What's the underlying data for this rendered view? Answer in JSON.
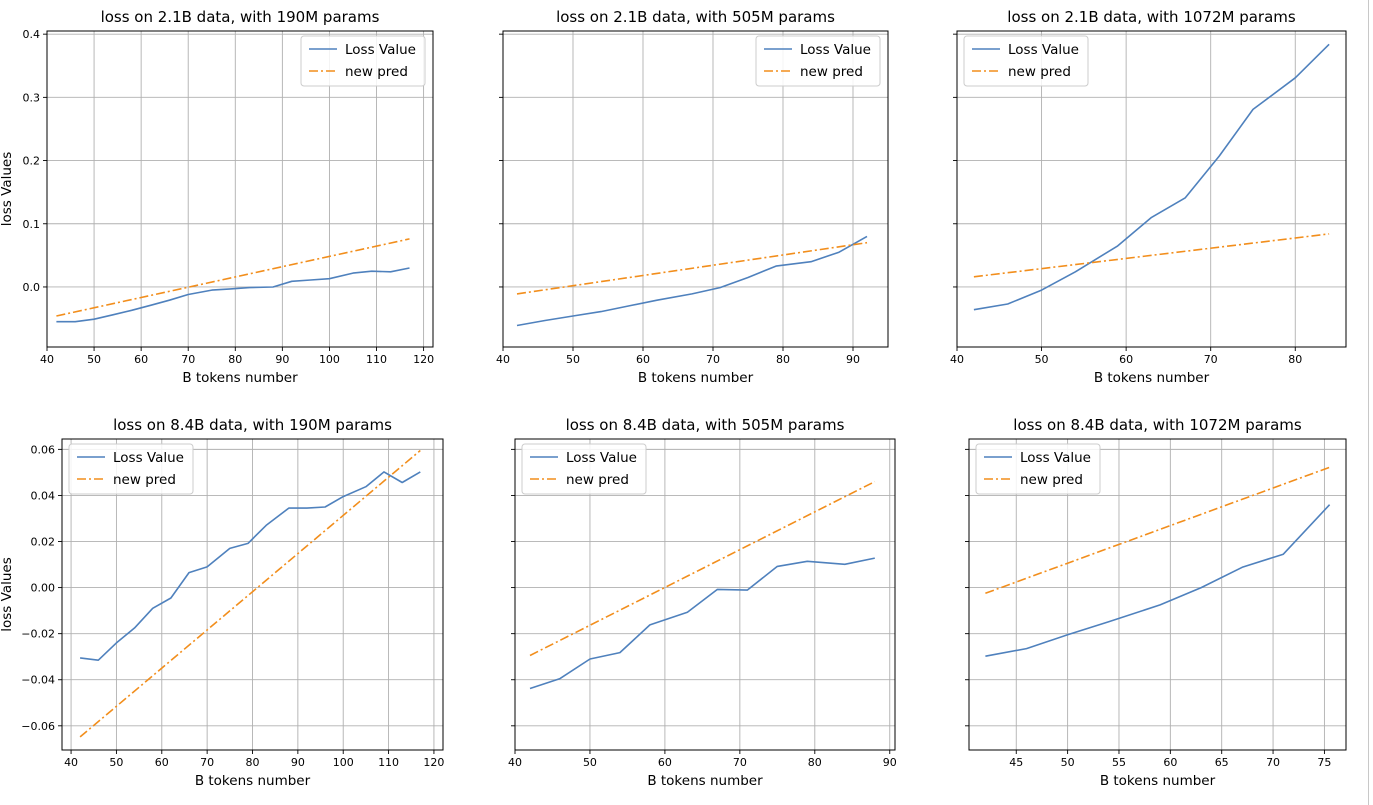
{
  "colors": {
    "loss_line": "#4f81bd",
    "pred_line": "#f28e1c",
    "grid": "#b0b0b0",
    "axis": "#000000",
    "legend_border": "#cccccc"
  },
  "chart_data": [
    {
      "type": "line",
      "title": "loss on 2.1B data, with 190M params",
      "xlabel": "B tokens number",
      "ylabel": "loss Values",
      "xlim": [
        40,
        122
      ],
      "ylim": [
        -0.095,
        0.405
      ],
      "xticks": [
        40,
        50,
        60,
        70,
        80,
        90,
        100,
        110,
        120
      ],
      "xtick_labels": [
        "40",
        "50",
        "60",
        "70",
        "80",
        "90",
        "100",
        "110",
        "120"
      ],
      "yticks": [
        0.0,
        0.1,
        0.2,
        0.3,
        0.4
      ],
      "ytick_labels": [
        "0.0",
        "0.1",
        "0.2",
        "0.3",
        "0.4"
      ],
      "legend_position": "top-right",
      "series": [
        {
          "name": "Loss Value",
          "style": "solid",
          "x": [
            42,
            46,
            50,
            54,
            58,
            62,
            66,
            70,
            75,
            79,
            83,
            88,
            92,
            96,
            100,
            105,
            109,
            113,
            117
          ],
          "y": [
            -0.055,
            -0.055,
            -0.051,
            -0.044,
            -0.037,
            -0.029,
            -0.021,
            -0.012,
            -0.005,
            -0.003,
            -0.001,
            0.0,
            0.009,
            0.011,
            0.013,
            0.022,
            0.025,
            0.024,
            0.03
          ]
        },
        {
          "name": "new pred",
          "style": "dashdot",
          "x": [
            42,
            117
          ],
          "y": [
            -0.046,
            0.076
          ]
        }
      ]
    },
    {
      "type": "line",
      "title": "loss on 2.1B data, with 505M params",
      "xlabel": "B tokens number",
      "ylabel": "",
      "xlim": [
        40,
        95
      ],
      "ylim": [
        -0.095,
        0.405
      ],
      "xticks": [
        40,
        50,
        60,
        70,
        80,
        90
      ],
      "xtick_labels": [
        "40",
        "50",
        "60",
        "70",
        "80",
        "90"
      ],
      "yticks": [
        0.0,
        0.1,
        0.2,
        0.3,
        0.4
      ],
      "ytick_labels": [],
      "legend_position": "top-right",
      "series": [
        {
          "name": "Loss Value",
          "style": "solid",
          "x": [
            42,
            46,
            50,
            54,
            58,
            62,
            67,
            71,
            75,
            79,
            84,
            88,
            92
          ],
          "y": [
            -0.061,
            -0.053,
            -0.046,
            -0.039,
            -0.03,
            -0.021,
            -0.011,
            -0.001,
            0.015,
            0.033,
            0.04,
            0.055,
            0.08
          ]
        },
        {
          "name": "new pred",
          "style": "dashdot",
          "x": [
            42,
            92
          ],
          "y": [
            -0.011,
            0.07
          ]
        }
      ]
    },
    {
      "type": "line",
      "title": "loss on 2.1B data, with 1072M params",
      "xlabel": "B tokens number",
      "ylabel": "",
      "xlim": [
        40,
        86
      ],
      "ylim": [
        -0.095,
        0.405
      ],
      "xticks": [
        40,
        50,
        60,
        70,
        80
      ],
      "xtick_labels": [
        "40",
        "50",
        "60",
        "70",
        "80"
      ],
      "yticks": [
        0.0,
        0.1,
        0.2,
        0.3,
        0.4
      ],
      "ytick_labels": [],
      "legend_position": "top-left",
      "series": [
        {
          "name": "Loss Value",
          "style": "solid",
          "x": [
            42,
            46,
            50,
            54,
            59,
            63,
            67,
            71,
            75,
            80,
            84
          ],
          "y": [
            -0.036,
            -0.027,
            -0.005,
            0.024,
            0.065,
            0.11,
            0.141,
            0.207,
            0.281,
            0.331,
            0.384
          ]
        },
        {
          "name": "new pred",
          "style": "dashdot",
          "x": [
            42,
            84
          ],
          "y": [
            0.016,
            0.084
          ]
        }
      ]
    },
    {
      "type": "line",
      "title": "loss on 8.4B data, with 190M params",
      "xlabel": "B tokens number",
      "ylabel": "loss Values",
      "xlim": [
        38,
        122
      ],
      "ylim": [
        -0.0705,
        0.0645
      ],
      "xticks": [
        40,
        50,
        60,
        70,
        80,
        90,
        100,
        110,
        120
      ],
      "xtick_labels": [
        "40",
        "50",
        "60",
        "70",
        "80",
        "90",
        "100",
        "110",
        "120"
      ],
      "yticks": [
        -0.06,
        -0.04,
        -0.02,
        0.0,
        0.02,
        0.04,
        0.06
      ],
      "ytick_labels": [
        "−0.06",
        "−0.04",
        "−0.02",
        "0.00",
        "0.02",
        "0.04",
        "0.06"
      ],
      "legend_position": "top-left",
      "series": [
        {
          "name": "Loss Value",
          "style": "solid",
          "x": [
            42,
            46,
            50,
            54,
            58,
            62,
            66,
            70,
            75,
            79,
            83,
            88,
            92,
            96,
            100,
            105,
            109,
            113,
            117
          ],
          "y": [
            -0.0305,
            -0.0315,
            -0.024,
            -0.0175,
            -0.009,
            -0.0045,
            0.0065,
            0.009,
            0.017,
            0.0192,
            0.027,
            0.0345,
            0.0345,
            0.035,
            0.0395,
            0.0438,
            0.0502,
            0.0456,
            0.0502
          ]
        },
        {
          "name": "new pred",
          "style": "dashdot",
          "x": [
            42,
            117
          ],
          "y": [
            -0.0648,
            0.0595
          ]
        }
      ]
    },
    {
      "type": "line",
      "title": "loss on 8.4B data, with 505M params",
      "xlabel": "B tokens number",
      "ylabel": "",
      "xlim": [
        40,
        90.7
      ],
      "ylim": [
        -0.0705,
        0.0645
      ],
      "xticks": [
        40,
        50,
        60,
        70,
        80,
        90
      ],
      "xtick_labels": [
        "40",
        "50",
        "60",
        "70",
        "80",
        "90"
      ],
      "yticks": [
        -0.06,
        -0.04,
        -0.02,
        0.0,
        0.02,
        0.04,
        0.06
      ],
      "ytick_labels": [],
      "legend_position": "top-left",
      "series": [
        {
          "name": "Loss Value",
          "style": "solid",
          "x": [
            42,
            46,
            50,
            54,
            58,
            63,
            67,
            71,
            75,
            79,
            84,
            88
          ],
          "y": [
            -0.0438,
            -0.0395,
            -0.031,
            -0.0282,
            -0.0162,
            -0.0107,
            -0.0008,
            -0.0011,
            0.0092,
            0.0114,
            0.0101,
            0.0128
          ]
        },
        {
          "name": "new pred",
          "style": "dashdot",
          "x": [
            42,
            88
          ],
          "y": [
            -0.0295,
            0.046
          ]
        }
      ]
    },
    {
      "type": "line",
      "title": "loss on 8.4B data, with 1072M params",
      "xlabel": "B tokens number",
      "ylabel": "",
      "xlim": [
        40.4,
        77.1
      ],
      "ylim": [
        -0.0705,
        0.0645
      ],
      "xticks": [
        45,
        50,
        55,
        60,
        65,
        70,
        75
      ],
      "xtick_labels": [
        "45",
        "50",
        "55",
        "60",
        "65",
        "70",
        "75"
      ],
      "yticks": [
        -0.06,
        -0.04,
        -0.02,
        0.0,
        0.02,
        0.04,
        0.06
      ],
      "ytick_labels": [],
      "legend_position": "top-left",
      "series": [
        {
          "name": "Loss Value",
          "style": "solid",
          "x": [
            42,
            46,
            50,
            54,
            59,
            63,
            67,
            71,
            75.5
          ],
          "y": [
            -0.0298,
            -0.0265,
            -0.0205,
            -0.0148,
            -0.0075,
            0.0,
            0.0088,
            0.0145,
            0.036
          ]
        },
        {
          "name": "new pred",
          "style": "dashdot",
          "x": [
            42,
            75.5
          ],
          "y": [
            -0.0025,
            0.0522
          ]
        }
      ]
    }
  ]
}
